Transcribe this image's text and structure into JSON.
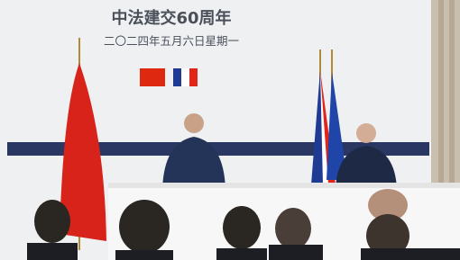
{
  "backdrop": {
    "title": "中法建交60周年",
    "date": "二〇二四年五月六日星期一"
  }
}
